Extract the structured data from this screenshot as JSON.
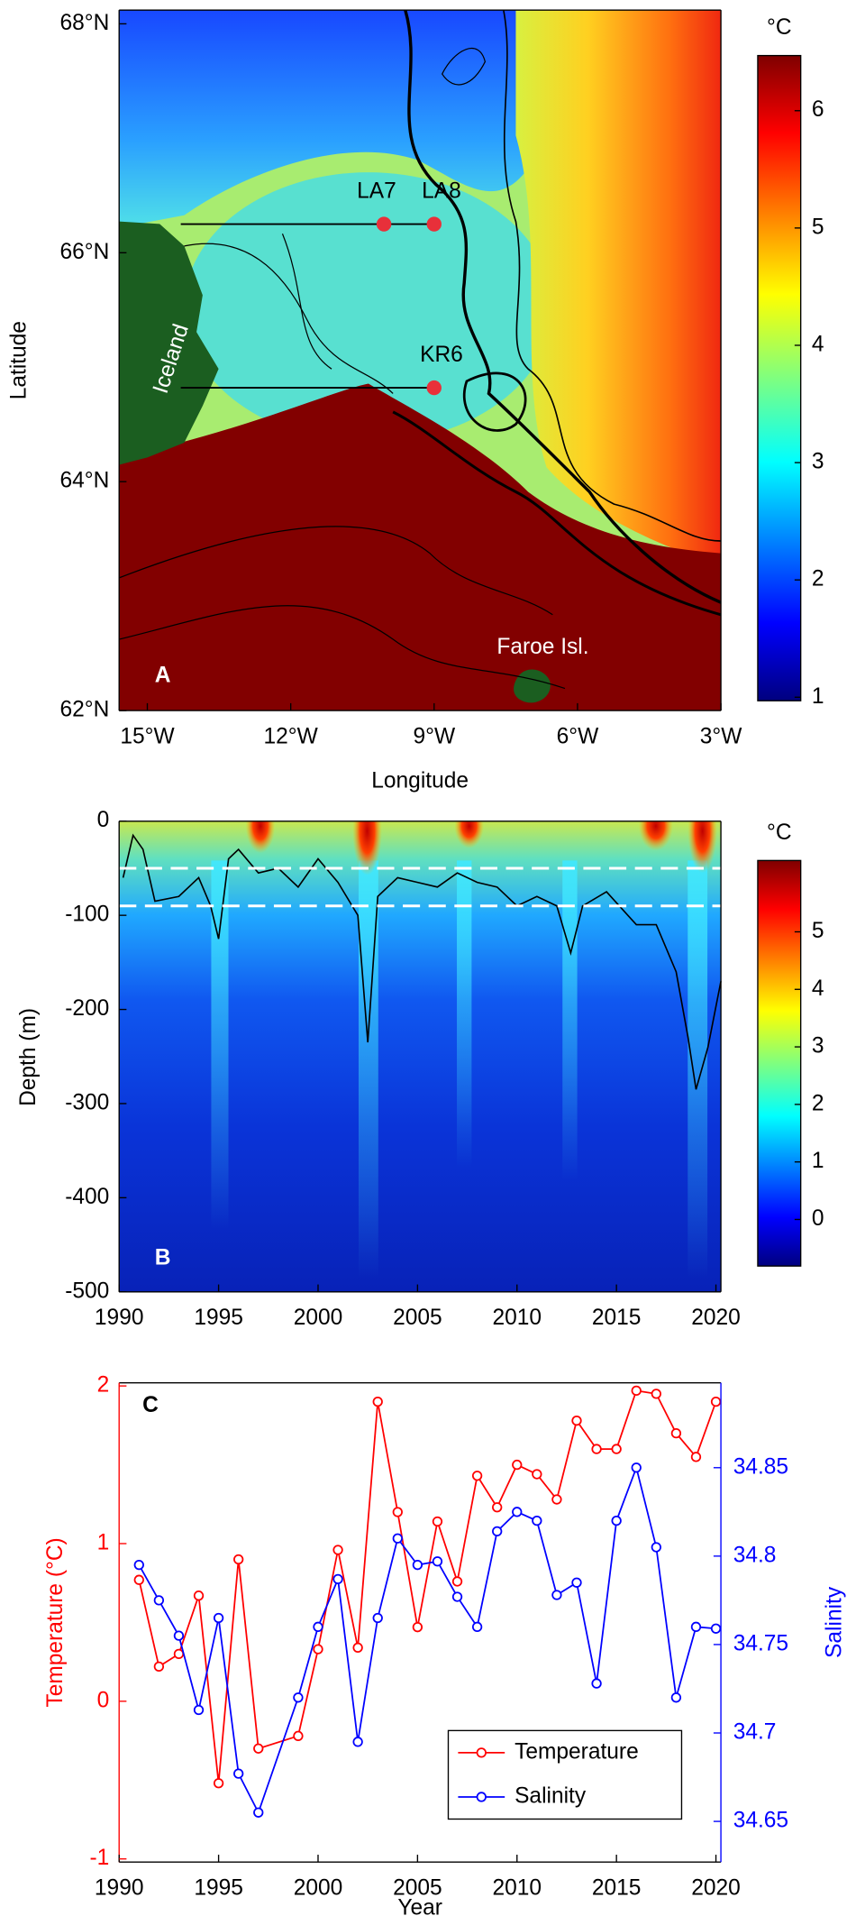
{
  "chart_data": [
    {
      "type": "map",
      "panel_label": "A",
      "xlabel": "Longitude",
      "ylabel": "Latitude",
      "xlim": [
        -15.59,
        -3
      ],
      "ylim": [
        62,
        68.12
      ],
      "xticks": [
        {
          "value": -15,
          "label": "15°W"
        },
        {
          "value": -12,
          "label": "12°W"
        },
        {
          "value": -9,
          "label": "9°W"
        },
        {
          "value": -6,
          "label": "6°W"
        },
        {
          "value": -3,
          "label": "3°W"
        }
      ],
      "yticks": [
        {
          "value": 62,
          "label": "62°N"
        },
        {
          "value": 64,
          "label": "64°N"
        },
        {
          "value": 66,
          "label": "66°N"
        },
        {
          "value": 68,
          "label": "68°N"
        }
      ],
      "stations": [
        {
          "name": "LA7",
          "lon": -10.05,
          "lat": 66.25
        },
        {
          "name": "LA8",
          "lon": -9.0,
          "lat": 66.25
        },
        {
          "name": "KR6",
          "lon": -9.0,
          "lat": 64.82
        }
      ],
      "sections": [
        {
          "lon": [
            -14.3,
            -9.0
          ],
          "lat": 66.25
        },
        {
          "lon": [
            -14.3,
            -9.0
          ],
          "lat": 64.82
        }
      ],
      "station_color": "#e8303a",
      "annotations": [
        "Iceland",
        "Faroe Isl."
      ],
      "colorbar": {
        "label": "°C",
        "lim": [
          0.97,
          6.47
        ],
        "ticks": [
          1,
          2,
          3,
          4,
          5,
          6
        ]
      }
    },
    {
      "type": "heatmap",
      "panel_label": "B",
      "ylabel": "Depth (m)",
      "xlim": [
        1990,
        2020.25
      ],
      "ylim": [
        -500,
        0
      ],
      "xticks": [
        1990,
        1995,
        2000,
        2005,
        2010,
        2015,
        2020
      ],
      "yticks": [
        0,
        -100,
        -200,
        -300,
        -400,
        -500
      ],
      "dashed_lines": [
        -50,
        -90
      ],
      "contour": {
        "x": [
          1990.2,
          1990.7,
          1991.2,
          1991.8,
          1993,
          1994,
          1994.6,
          1995,
          1995.5,
          1996,
          1997,
          1998,
          1999,
          2000,
          2001,
          2002,
          2002.5,
          2003,
          2004,
          2005,
          2006,
          2007,
          2008,
          2009,
          2010,
          2011,
          2012,
          2012.7,
          2013.3,
          2014.5,
          2016,
          2017,
          2018,
          2018.6,
          2019,
          2019.6,
          2020.25
        ],
        "y": [
          -60,
          -15,
          -30,
          -85,
          -80,
          -60,
          -90,
          -125,
          -40,
          -30,
          -55,
          -50,
          -70,
          -40,
          -65,
          -100,
          -235,
          -80,
          -60,
          -65,
          -70,
          -55,
          -65,
          -70,
          -90,
          -80,
          -90,
          -140,
          -90,
          -75,
          -110,
          -110,
          -160,
          -230,
          -285,
          -240,
          -170
        ]
      },
      "colorbar": {
        "label": "°C",
        "lim": [
          -0.81,
          6.24
        ],
        "ticks": [
          0,
          1,
          2,
          3,
          4,
          5
        ]
      }
    },
    {
      "type": "line",
      "panel_label": "C",
      "xlabel": "Year",
      "ylabel": "Temperature (°C)",
      "y2label": "Salinity",
      "xlim": [
        1990,
        2020.25
      ],
      "ylim": [
        -1.02,
        2.02
      ],
      "y2lim": [
        34.627,
        34.898
      ],
      "xticks": [
        1990,
        1995,
        2000,
        2005,
        2010,
        2015,
        2020
      ],
      "yticks": [
        -1,
        0,
        1,
        2
      ],
      "y2ticks": [
        34.65,
        34.7,
        34.75,
        34.8,
        34.85
      ],
      "legend": "lower right",
      "x": [
        1991,
        1992,
        1993,
        1994,
        1995,
        1996,
        1997,
        1999,
        2000,
        2001,
        2002,
        2003,
        2004,
        2005,
        2006,
        2007,
        2008,
        2009,
        2010,
        2011,
        2012,
        2013,
        2014,
        2015,
        2016,
        2017,
        2018,
        2019,
        2020
      ],
      "series": [
        {
          "name": "Temperature",
          "color": "#ff0000",
          "values": [
            0.77,
            0.22,
            0.3,
            0.67,
            -0.52,
            0.9,
            -0.3,
            -0.22,
            0.33,
            0.96,
            0.34,
            1.9,
            1.2,
            0.47,
            1.14,
            0.76,
            1.43,
            1.23,
            1.5,
            1.44,
            1.28,
            1.78,
            1.6,
            1.6,
            1.97,
            1.95,
            1.7,
            1.55,
            1.9
          ]
        },
        {
          "name": "Salinity",
          "color": "#0000ff",
          "axis": "y2",
          "values": [
            34.795,
            34.775,
            34.755,
            34.713,
            34.765,
            34.677,
            34.655,
            34.72,
            34.76,
            34.787,
            34.695,
            34.765,
            34.81,
            34.795,
            34.797,
            34.777,
            34.76,
            34.814,
            34.825,
            34.82,
            34.778,
            34.785,
            34.728,
            34.82,
            34.85,
            34.805,
            34.72,
            34.76,
            34.759
          ]
        }
      ]
    }
  ]
}
